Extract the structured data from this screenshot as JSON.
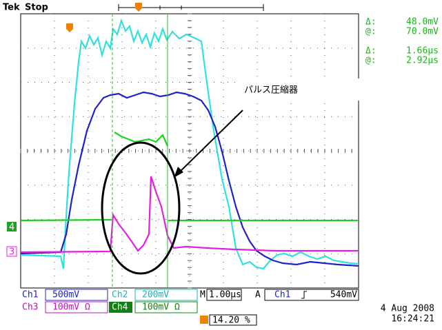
{
  "header": {
    "brand": "Tek",
    "status": "Stop"
  },
  "cursors": [
    {
      "delta_label": "Δ:",
      "delta": "48.0mV",
      "at_label": "@:",
      "at": "70.0mV"
    },
    {
      "delta_label": "Δ:",
      "delta": "1.66µs",
      "at_label": "@:",
      "at": "2.92µs"
    }
  ],
  "annotation": "パルス圧縮器",
  "channel_markers": {
    "ch4": "4",
    "ch3": "3"
  },
  "settings": {
    "row1": {
      "ch1_label": "Ch1",
      "ch1_scale": "500mV",
      "ch2_label": "Ch2",
      "ch2_scale": "200mV",
      "time_label": "M",
      "time_scale": "1.00µs",
      "trigger_label": "A",
      "trigger_source": "Ch1",
      "trigger_level": "540mV"
    },
    "row2": {
      "ch3_label": "Ch3",
      "ch3_scale": "100mV Ω",
      "ch4_label": "Ch4",
      "ch4_scale": "100mV Ω"
    }
  },
  "date": "4 Aug 2008",
  "time": "16:24:21",
  "trigger_position": "14.20 %"
}
